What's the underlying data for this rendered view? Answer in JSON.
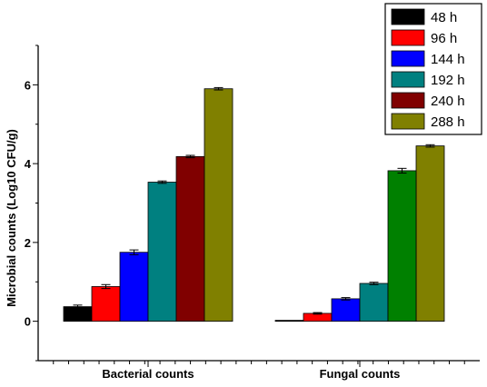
{
  "chart_data": {
    "type": "bar",
    "title": "",
    "xlabel": "",
    "ylabel": "Microbial counts (Log10 CFU/g)",
    "categories": [
      "Bacterial counts",
      "Fungal counts"
    ],
    "ylim": [
      -1,
      7
    ],
    "yticks": [
      0,
      2,
      4,
      6
    ],
    "grid": false,
    "legend_position": "top-right",
    "series": [
      {
        "name": "48 h",
        "color": "#000000",
        "values": [
          0.37,
          0.0
        ],
        "errors": [
          0.04,
          0.0
        ]
      },
      {
        "name": "96 h",
        "color": "#ff0000",
        "values": [
          0.88,
          0.2
        ],
        "errors": [
          0.05,
          0.02
        ]
      },
      {
        "name": "144 h",
        "color": "#0000ff",
        "values": [
          1.75,
          0.57
        ],
        "errors": [
          0.06,
          0.03
        ]
      },
      {
        "name": "192 h",
        "color": "#008080",
        "values": [
          3.53,
          0.96
        ],
        "errors": [
          0.03,
          0.03
        ]
      },
      {
        "name": "240 h",
        "color": "#800000",
        "values": [
          4.18,
          null
        ],
        "errors": [
          0.03,
          null
        ]
      },
      {
        "name": "288 h",
        "color": "#808000",
        "values": [
          5.9,
          4.45
        ],
        "errors": [
          0.03,
          0.03
        ]
      }
    ],
    "extra_bars": [
      {
        "category": "Fungal counts",
        "slot": 4,
        "color": "#008000",
        "value": 3.82,
        "error": 0.06
      }
    ]
  }
}
